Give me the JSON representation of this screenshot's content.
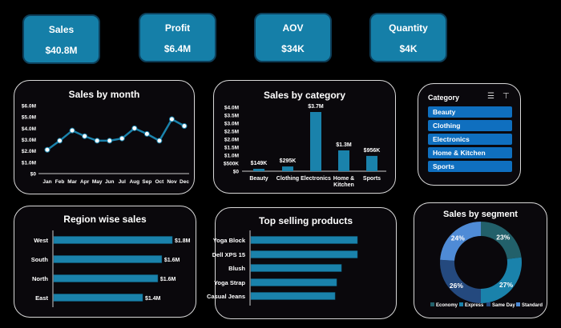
{
  "kpis": [
    {
      "title": "Sales",
      "value": "$40.8M"
    },
    {
      "title": "Profit",
      "value": "$6.4M"
    },
    {
      "title": "AOV",
      "value": "$34K"
    },
    {
      "title": "Quantity",
      "value": "$4K"
    }
  ],
  "colors": {
    "accent": "#1a82ab",
    "card": "#157fa8",
    "slicer": "#0f6fbf"
  },
  "slicer": {
    "title": "Category",
    "items": [
      "Beauty",
      "Clothing",
      "Electronics",
      "Home & Kitchen",
      "Sports"
    ],
    "icons": [
      "multi-select-icon",
      "clear-filter-icon"
    ]
  },
  "chart_data": [
    {
      "type": "line",
      "title": "Sales by month",
      "categories": [
        "Jan",
        "Feb",
        "Mar",
        "Apr",
        "May",
        "Jun",
        "Jul",
        "Aug",
        "Sep",
        "Oct",
        "Nov",
        "Dec"
      ],
      "values": [
        2.1,
        2.9,
        3.8,
        3.3,
        2.9,
        2.9,
        3.1,
        4.0,
        3.5,
        2.9,
        4.8,
        4.2
      ],
      "unit": "$M",
      "yticks": [
        "$0",
        "$1.0M",
        "$2.0M",
        "$3.0M",
        "$4.0M",
        "$5.0M",
        "$6.0M"
      ],
      "ylim": [
        0,
        6
      ]
    },
    {
      "type": "bar",
      "title": "Sales by category",
      "categories": [
        "Beauty",
        "Clothing",
        "Electronics",
        "Home & Kitchen",
        "Sports"
      ],
      "values": [
        0.149,
        0.295,
        3.7,
        1.3,
        0.956
      ],
      "labels": [
        "$149K",
        "$295K",
        "$3.7M",
        "$1.3M",
        "$956K"
      ],
      "unit": "$M",
      "yticks": [
        "$0",
        "$500K",
        "$1.0M",
        "$1.5M",
        "$2.0M",
        "$2.5M",
        "$3.0M",
        "$3.5M",
        "$4.0M"
      ],
      "ylim": [
        0,
        4
      ]
    },
    {
      "type": "bar",
      "orientation": "horizontal",
      "title": "Region wise sales",
      "categories": [
        "West",
        "South",
        "North",
        "East"
      ],
      "values": [
        1.8,
        1.64,
        1.58,
        1.35
      ],
      "labels": [
        "$1.8M",
        "$1.6M",
        "$1.6M",
        "$1.4M"
      ],
      "unit": "$M"
    },
    {
      "type": "bar",
      "orientation": "horizontal",
      "title": "Top selling products",
      "categories": [
        "Yoga Block",
        "Dell XPS 15",
        "Blush",
        "Yoga Strap",
        "Casual Jeans"
      ],
      "values": [
        1.0,
        1.0,
        0.85,
        0.805,
        0.79
      ]
    },
    {
      "type": "pie",
      "subtype": "donut",
      "title": "Sales by segment",
      "categories": [
        "Economy",
        "Express",
        "Same Day",
        "Standard"
      ],
      "values": [
        23,
        27,
        26,
        24
      ],
      "labels": [
        "23%",
        "27%",
        "26%",
        "24%"
      ],
      "colors": [
        "#22606a",
        "#1a82ab",
        "#24497e",
        "#4f8bd6"
      ],
      "legend": "bottom"
    }
  ]
}
